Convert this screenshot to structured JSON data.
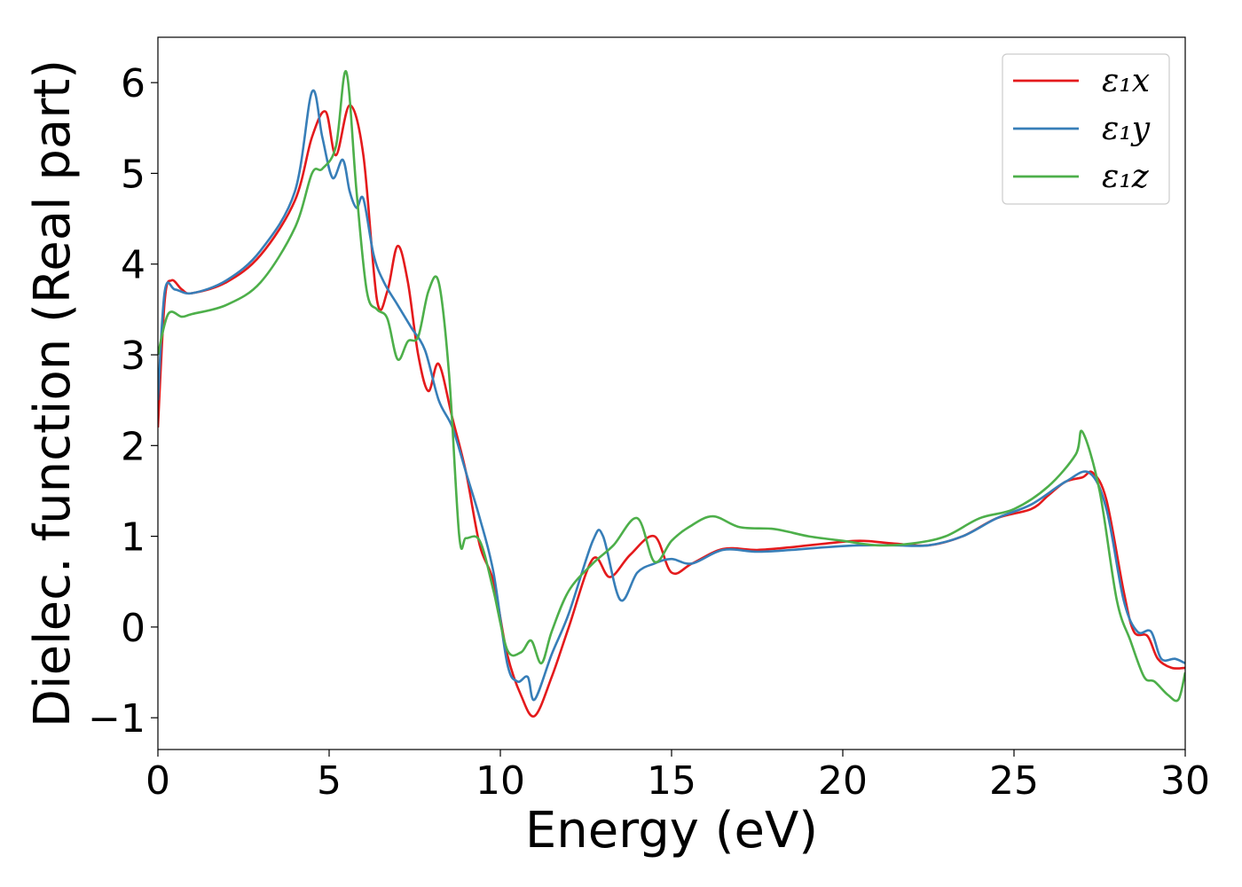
{
  "chart_data": {
    "type": "line",
    "title": "",
    "xlabel": "Energy (eV)",
    "ylabel": "Dielec. function (Real part)",
    "xlim": [
      0,
      30
    ],
    "ylim": [
      -1.35,
      6.5
    ],
    "xticks": [
      0,
      5,
      10,
      15,
      20,
      25,
      30
    ],
    "xtick_labels": [
      "0",
      "5",
      "10",
      "15",
      "20",
      "25",
      "30"
    ],
    "yticks": [
      -1,
      0,
      1,
      2,
      3,
      4,
      5,
      6
    ],
    "ytick_labels": [
      "−1",
      "0",
      "1",
      "2",
      "3",
      "4",
      "5",
      "6"
    ],
    "grid": false,
    "legend_position": "top-right",
    "series": [
      {
        "name": "ε₁x",
        "color": "#e41a1c",
        "x": [
          0,
          0.2,
          0.4,
          0.7,
          1.0,
          2.0,
          3.0,
          4.0,
          4.5,
          4.9,
          5.2,
          5.6,
          6.0,
          6.4,
          6.7,
          7.0,
          7.3,
          7.6,
          7.9,
          8.2,
          8.6,
          9.0,
          9.4,
          9.8,
          10.2,
          10.6,
          11.0,
          11.5,
          12.0,
          12.7,
          13.2,
          13.8,
          14.5,
          15.0,
          15.6,
          16.5,
          17.5,
          18.5,
          19.5,
          20.5,
          21.5,
          22.5,
          23.5,
          24.5,
          25.5,
          26.0,
          26.5,
          27.0,
          27.3,
          27.7,
          28.2,
          28.5,
          28.9,
          29.2,
          29.6,
          30.0
        ],
        "y": [
          2.2,
          3.6,
          3.82,
          3.72,
          3.68,
          3.8,
          4.1,
          4.7,
          5.4,
          5.68,
          5.2,
          5.75,
          5.2,
          3.6,
          3.7,
          4.2,
          3.8,
          3.0,
          2.6,
          2.9,
          2.3,
          1.7,
          0.9,
          0.5,
          -0.3,
          -0.75,
          -0.98,
          -0.55,
          0.0,
          0.75,
          0.55,
          0.8,
          1.0,
          0.6,
          0.7,
          0.86,
          0.85,
          0.88,
          0.92,
          0.95,
          0.92,
          0.9,
          1.0,
          1.2,
          1.3,
          1.45,
          1.6,
          1.65,
          1.7,
          1.4,
          0.4,
          -0.05,
          -0.1,
          -0.35,
          -0.45,
          -0.45
        ]
      },
      {
        "name": "ε₁y",
        "color": "#377eb8",
        "x": [
          0,
          0.2,
          0.5,
          1.0,
          2.0,
          3.0,
          4.0,
          4.5,
          4.8,
          5.1,
          5.4,
          5.6,
          5.8,
          6.0,
          6.3,
          6.6,
          7.0,
          7.4,
          7.8,
          8.2,
          8.6,
          9.0,
          9.4,
          9.8,
          10.2,
          10.5,
          10.8,
          11.0,
          11.5,
          12.0,
          12.7,
          13.0,
          13.5,
          14.0,
          14.5,
          15.0,
          15.6,
          16.5,
          17.5,
          18.5,
          19.5,
          20.5,
          21.5,
          22.5,
          23.5,
          24.5,
          25.5,
          26.5,
          27.2,
          27.7,
          28.2,
          28.6,
          29.0,
          29.3,
          29.7,
          30.0
        ],
        "y": [
          2.5,
          3.7,
          3.72,
          3.68,
          3.82,
          4.15,
          4.8,
          5.9,
          5.4,
          4.95,
          5.15,
          4.8,
          4.62,
          4.72,
          4.1,
          3.8,
          3.55,
          3.3,
          3.05,
          2.5,
          2.2,
          1.7,
          1.2,
          0.6,
          -0.4,
          -0.6,
          -0.55,
          -0.8,
          -0.3,
          0.15,
          0.95,
          1.0,
          0.3,
          0.6,
          0.7,
          0.75,
          0.7,
          0.85,
          0.83,
          0.85,
          0.88,
          0.9,
          0.9,
          0.9,
          1.0,
          1.2,
          1.35,
          1.6,
          1.7,
          1.3,
          0.3,
          -0.05,
          -0.05,
          -0.35,
          -0.35,
          -0.4
        ]
      },
      {
        "name": "ε₁z",
        "color": "#4daf4a",
        "x": [
          0,
          0.3,
          0.7,
          1.0,
          2.0,
          3.0,
          4.0,
          4.5,
          4.8,
          5.2,
          5.5,
          5.8,
          6.1,
          6.4,
          6.7,
          7.0,
          7.3,
          7.6,
          7.9,
          8.2,
          8.5,
          8.8,
          9.0,
          9.4,
          9.8,
          10.2,
          10.6,
          10.9,
          11.2,
          11.5,
          12.0,
          12.7,
          13.3,
          14.0,
          14.5,
          15.0,
          15.5,
          16.2,
          17.0,
          18.0,
          19.0,
          20.0,
          21.0,
          22.0,
          23.0,
          24.0,
          25.0,
          26.0,
          26.8,
          27.0,
          27.5,
          28.0,
          28.4,
          28.8,
          29.1,
          29.5,
          29.8,
          30.0
        ],
        "y": [
          3.0,
          3.45,
          3.42,
          3.45,
          3.55,
          3.8,
          4.4,
          5.0,
          5.05,
          5.3,
          6.12,
          4.8,
          3.7,
          3.5,
          3.4,
          2.95,
          3.15,
          3.2,
          3.7,
          3.8,
          2.8,
          1.0,
          0.98,
          0.95,
          0.4,
          -0.25,
          -0.28,
          -0.15,
          -0.4,
          -0.05,
          0.4,
          0.7,
          0.9,
          1.2,
          0.72,
          0.95,
          1.1,
          1.22,
          1.1,
          1.08,
          1.0,
          0.95,
          0.9,
          0.92,
          1.0,
          1.2,
          1.3,
          1.55,
          1.9,
          2.15,
          1.5,
          0.3,
          -0.15,
          -0.55,
          -0.6,
          -0.75,
          -0.8,
          -0.5
        ]
      }
    ]
  }
}
